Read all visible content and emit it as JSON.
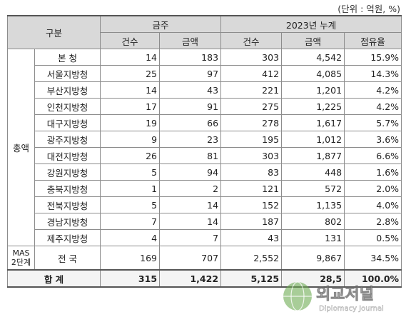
{
  "unit_note": "(단위 : 억원, %)",
  "header": {
    "group": "구분",
    "monthly": "금주",
    "cumulative": "2023년 누계",
    "count": "건수",
    "amount": "금액",
    "count2": "건수",
    "amount2": "금액",
    "share": "점유율"
  },
  "category_total": "총액",
  "rows": [
    {
      "name": "본   청",
      "c1": "14",
      "a1": "183",
      "c2": "303",
      "a2": "4,542",
      "s": "15.9%"
    },
    {
      "name": "서울지방청",
      "c1": "25",
      "a1": "97",
      "c2": "412",
      "a2": "4,085",
      "s": "14.3%"
    },
    {
      "name": "부산지방청",
      "c1": "14",
      "a1": "43",
      "c2": "221",
      "a2": "1,201",
      "s": "4.2%"
    },
    {
      "name": "인천지방청",
      "c1": "17",
      "a1": "91",
      "c2": "275",
      "a2": "1,225",
      "s": "4.2%"
    },
    {
      "name": "대구지방청",
      "c1": "19",
      "a1": "66",
      "c2": "278",
      "a2": "1,617",
      "s": "5.7%"
    },
    {
      "name": "광주지방청",
      "c1": "9",
      "a1": "23",
      "c2": "195",
      "a2": "1,012",
      "s": "3.6%"
    },
    {
      "name": "대전지방청",
      "c1": "26",
      "a1": "81",
      "c2": "303",
      "a2": "1,877",
      "s": "6.6%"
    },
    {
      "name": "강원지방청",
      "c1": "5",
      "a1": "94",
      "c2": "83",
      "a2": "448",
      "s": "1.6%"
    },
    {
      "name": "충북지방청",
      "c1": "1",
      "a1": "2",
      "c2": "121",
      "a2": "572",
      "s": "2.0%"
    },
    {
      "name": "전북지방청",
      "c1": "5",
      "a1": "14",
      "c2": "152",
      "a2": "1,135",
      "s": "4.0%"
    },
    {
      "name": "경남지방청",
      "c1": "7",
      "a1": "14",
      "c2": "187",
      "a2": "802",
      "s": "2.8%"
    },
    {
      "name": "제주지방청",
      "c1": "4",
      "a1": "7",
      "c2": "43",
      "a2": "131",
      "s": "0.5%"
    }
  ],
  "mas": {
    "label_line1": "MAS",
    "label_line2": "2단계",
    "name": "전   국",
    "c1": "169",
    "a1": "707",
    "c2": "2,552",
    "a2": "9,867",
    "s": "34.5%"
  },
  "total": {
    "label": "합   계",
    "c1": "315",
    "a1": "1,422",
    "c2": "5,125",
    "a2": "28,5",
    "s": "100.0%"
  },
  "watermark": {
    "text_main": "외교저널",
    "text_sub": "Diplomacy Journal"
  }
}
